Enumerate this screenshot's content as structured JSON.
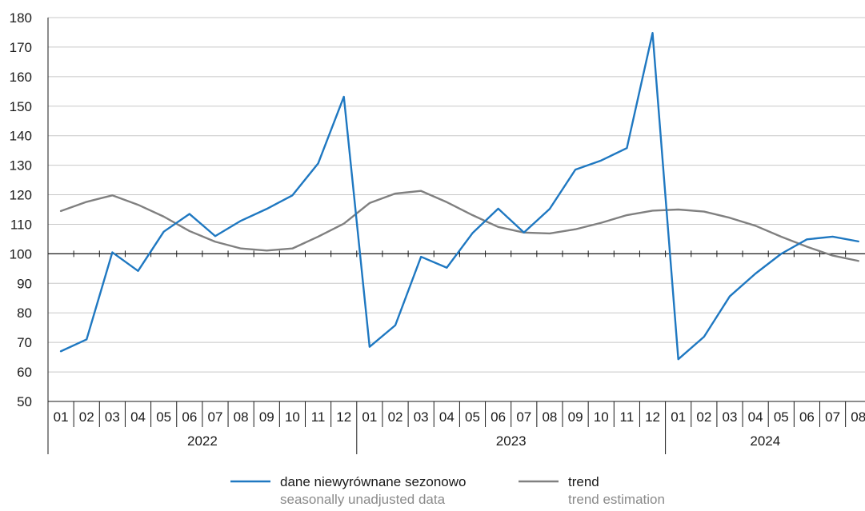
{
  "chart_data": {
    "type": "line",
    "x": [
      "01",
      "02",
      "03",
      "04",
      "05",
      "06",
      "07",
      "08",
      "09",
      "10",
      "11",
      "12",
      "01",
      "02",
      "03",
      "04",
      "05",
      "06",
      "07",
      "08",
      "09",
      "10",
      "11",
      "12",
      "01",
      "02",
      "03",
      "04",
      "05",
      "06",
      "07",
      "08"
    ],
    "years": [
      {
        "label": "2022",
        "months": 12
      },
      {
        "label": "2023",
        "months": 12
      },
      {
        "label": "2024",
        "months": 8
      }
    ],
    "ylim": [
      50,
      180
    ],
    "yticks": [
      50,
      60,
      70,
      80,
      90,
      100,
      110,
      120,
      130,
      140,
      150,
      160,
      170,
      180
    ],
    "baseline": 100,
    "grid": true,
    "legend_position": "bottom",
    "series": [
      {
        "name": "dane niewyrównane sezonowo",
        "subname": "seasonally unadjusted data",
        "color": "#1f78c1",
        "values": [
          67.0,
          71.0,
          100.5,
          94.2,
          107.5,
          113.5,
          106.0,
          111.2,
          115.2,
          119.8,
          130.6,
          153.2,
          68.5,
          75.8,
          99.0,
          95.3,
          107.0,
          115.3,
          107.2,
          115.2,
          128.5,
          131.6,
          135.8,
          174.8,
          64.3,
          71.9,
          85.6,
          93.3,
          100.0,
          104.9,
          105.8,
          104.2
        ]
      },
      {
        "name": "trend",
        "subname": "trend estimation",
        "color": "#808080",
        "values": [
          114.5,
          117.6,
          119.8,
          116.6,
          112.6,
          107.7,
          104.1,
          101.8,
          101.1,
          101.8,
          105.8,
          110.2,
          117.2,
          120.4,
          121.3,
          117.5,
          113.1,
          109.1,
          107.2,
          106.9,
          108.3,
          110.5,
          113.1,
          114.6,
          115.0,
          114.3,
          112.2,
          109.5,
          105.8,
          102.4,
          99.4,
          97.6
        ]
      }
    ]
  }
}
